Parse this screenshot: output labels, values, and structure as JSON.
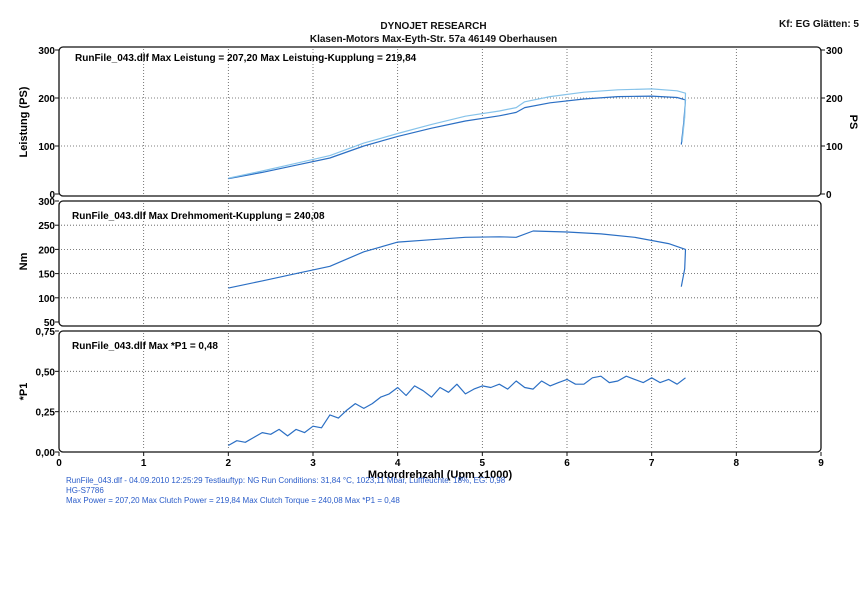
{
  "header": {
    "title": "DYNOJET RESEARCH",
    "subtitle": "Klasen-Motors   Max-Eyth-Str. 57a   46149 Oberhausen",
    "corner": "Kf: EG  Glätten: 5"
  },
  "footer": {
    "line1": "RunFile_043.dlf - 04.09.2010 12:25:29  Testlauftyp: NG  Run Conditions: 31,84 °C, 1023,11 Mbar,  Luftfeuchte: 18%, EG: 0,98",
    "line2": "HG-S7786",
    "line3": "Max Power = 207,20  Max Clutch Power = 219,84  Max Clutch Torque = 240,08  Max *P1 = 0,48"
  },
  "colors": {
    "trace": "#2b6fc4",
    "trace_light": "#86c3ea",
    "frame": "#111111",
    "grid": "#555555"
  },
  "chart_data": [
    {
      "type": "line",
      "annotation": "RunFile_043.dlf Max Leistung = 207,20      Max Leistung-Kupplung = 219,84",
      "ylabel": "Leistung (PS)",
      "ylabel_right": "PS",
      "ylim": [
        0,
        300
      ],
      "yticks": [
        0,
        100,
        200,
        300
      ],
      "yticks_right": [
        0,
        100,
        200,
        300
      ],
      "xlim": [
        0,
        9
      ],
      "grid": true,
      "series": [
        {
          "color": "trace",
          "x": [
            2.0,
            2.4,
            2.8,
            3.2,
            3.6,
            4.0,
            4.4,
            4.8,
            5.2,
            5.4,
            5.5,
            5.8,
            6.2,
            6.6,
            7.0,
            7.3,
            7.4,
            7.38,
            7.35
          ],
          "y": [
            32,
            45,
            60,
            75,
            100,
            120,
            137,
            152,
            163,
            170,
            180,
            190,
            198,
            203,
            204,
            201,
            196,
            150,
            103
          ]
        },
        {
          "color": "trace_light",
          "x": [
            2.0,
            2.4,
            2.8,
            3.2,
            3.6,
            4.0,
            4.4,
            4.8,
            5.2,
            5.4,
            5.5,
            5.8,
            6.2,
            6.6,
            7.0,
            7.3,
            7.4,
            7.39,
            7.36
          ],
          "y": [
            33,
            48,
            64,
            80,
            106,
            126,
            145,
            162,
            173,
            180,
            192,
            203,
            212,
            217,
            219,
            215,
            210,
            160,
            108
          ]
        }
      ]
    },
    {
      "type": "line",
      "annotation": "RunFile_043.dlf Max Drehmoment-Kupplung = 240,08",
      "ylabel": "Nm",
      "ylim": [
        50,
        300
      ],
      "yticks": [
        50,
        100,
        150,
        200,
        250,
        300
      ],
      "xlim": [
        0,
        9
      ],
      "grid": true,
      "series": [
        {
          "color": "trace",
          "x": [
            2.0,
            2.4,
            2.8,
            3.2,
            3.6,
            4.0,
            4.4,
            4.8,
            5.2,
            5.4,
            5.6,
            6.0,
            6.4,
            6.8,
            7.2,
            7.4,
            7.39,
            7.35
          ],
          "y": [
            120,
            135,
            150,
            165,
            195,
            215,
            220,
            225,
            226,
            225,
            238,
            236,
            232,
            225,
            212,
            200,
            160,
            123
          ]
        }
      ]
    },
    {
      "type": "line",
      "annotation": "RunFile_043.dlf Max *P1 = 0,48",
      "ylabel": "*P1",
      "ylim": [
        0,
        0.75
      ],
      "yticks": [
        "0,00",
        "0,25",
        "0,50",
        "0,75"
      ],
      "xlabel": "Motordrehzahl (Upm x1000)",
      "xticks": [
        0,
        1,
        2,
        3,
        4,
        5,
        6,
        7,
        8,
        9
      ],
      "xlim": [
        0,
        9
      ],
      "grid": true,
      "series": [
        {
          "color": "trace",
          "x": [
            2.0,
            2.1,
            2.2,
            2.3,
            2.4,
            2.5,
            2.6,
            2.7,
            2.8,
            2.9,
            3.0,
            3.1,
            3.2,
            3.3,
            3.4,
            3.5,
            3.6,
            3.7,
            3.8,
            3.9,
            4.0,
            4.1,
            4.2,
            4.3,
            4.4,
            4.5,
            4.6,
            4.7,
            4.8,
            4.9,
            5.0,
            5.1,
            5.2,
            5.3,
            5.4,
            5.5,
            5.6,
            5.7,
            5.8,
            5.9,
            6.0,
            6.1,
            6.2,
            6.3,
            6.4,
            6.5,
            6.6,
            6.7,
            6.8,
            6.9,
            7.0,
            7.1,
            7.2,
            7.3,
            7.4
          ],
          "y": [
            0.04,
            0.07,
            0.06,
            0.09,
            0.12,
            0.11,
            0.14,
            0.1,
            0.14,
            0.12,
            0.16,
            0.15,
            0.23,
            0.21,
            0.26,
            0.3,
            0.27,
            0.3,
            0.34,
            0.36,
            0.4,
            0.35,
            0.41,
            0.38,
            0.34,
            0.4,
            0.37,
            0.42,
            0.36,
            0.39,
            0.41,
            0.4,
            0.42,
            0.39,
            0.44,
            0.4,
            0.39,
            0.44,
            0.41,
            0.43,
            0.45,
            0.42,
            0.42,
            0.46,
            0.47,
            0.43,
            0.44,
            0.47,
            0.45,
            0.43,
            0.46,
            0.43,
            0.45,
            0.42,
            0.46
          ]
        }
      ]
    }
  ]
}
